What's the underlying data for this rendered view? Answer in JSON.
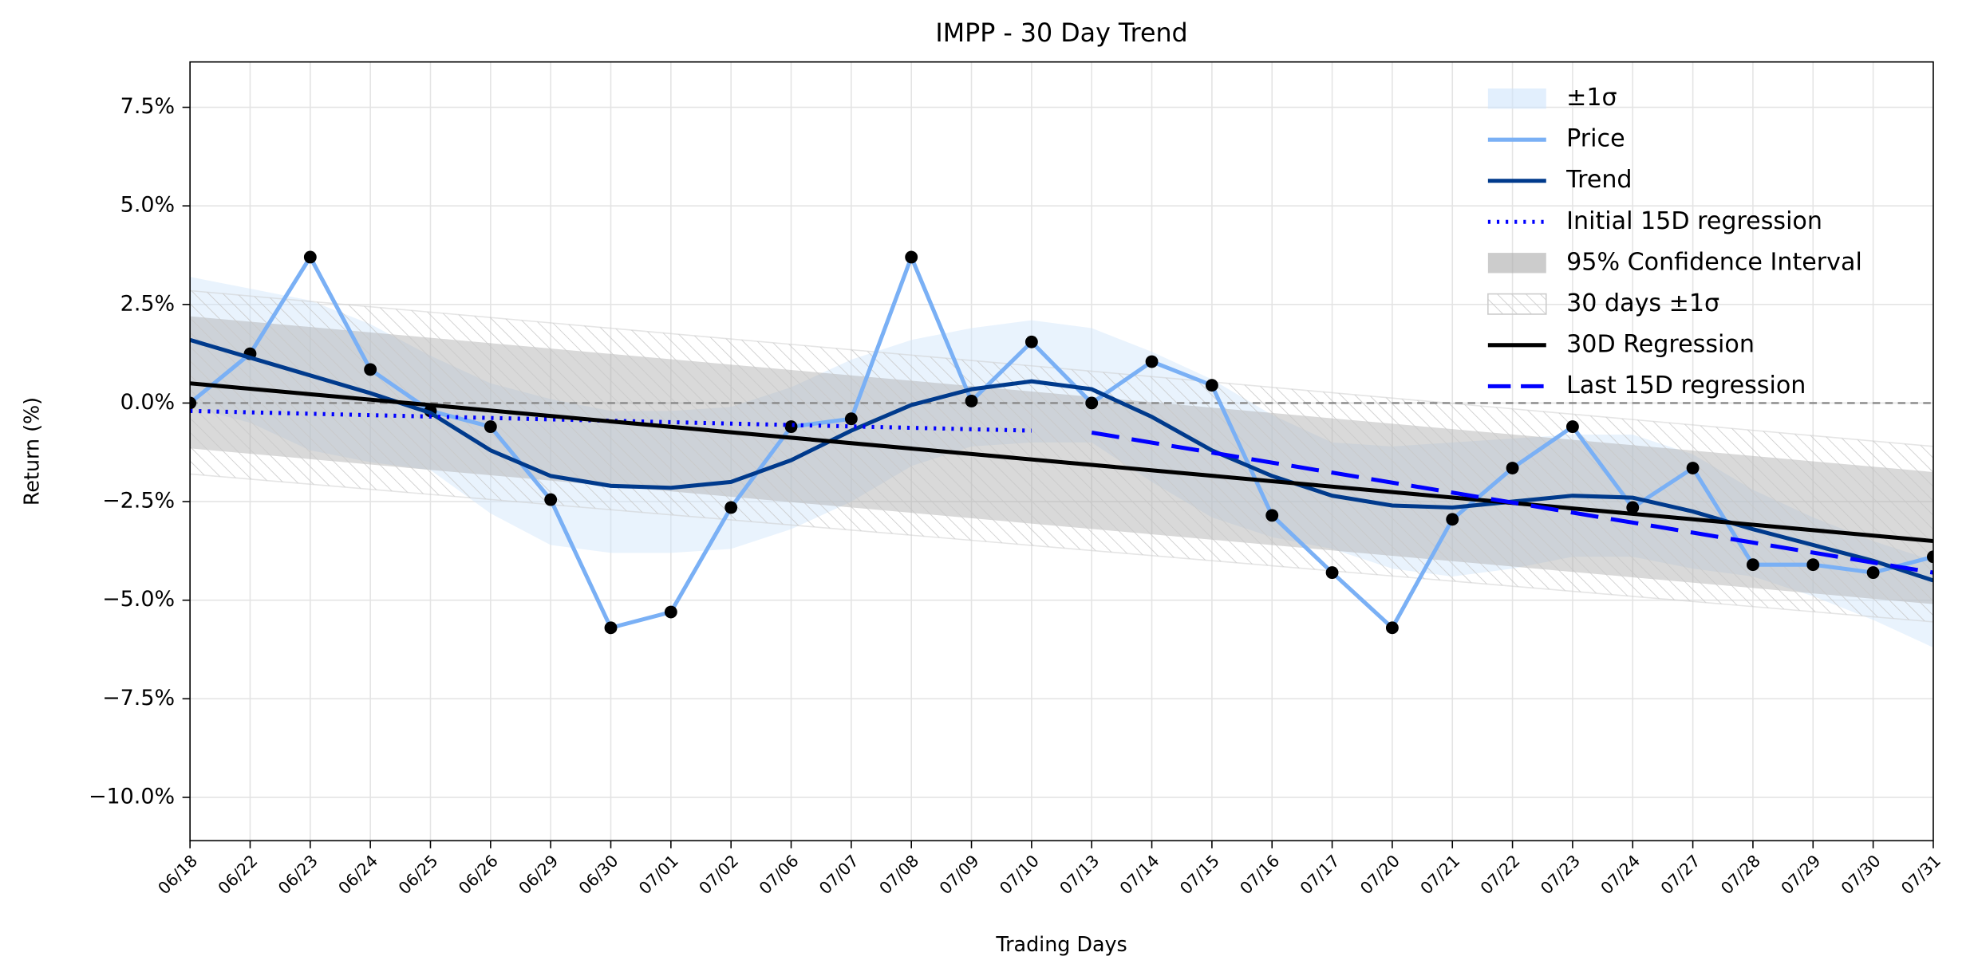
{
  "chart_data": {
    "type": "line",
    "title": "IMPP - 30 Day Trend",
    "xlabel": "Trading Days",
    "ylabel": "Return (%)",
    "categories": [
      "06/18",
      "06/22",
      "06/23",
      "06/24",
      "06/25",
      "06/26",
      "06/29",
      "06/30",
      "07/01",
      "07/02",
      "07/06",
      "07/07",
      "07/08",
      "07/09",
      "07/10",
      "07/13",
      "07/14",
      "07/15",
      "07/16",
      "07/17",
      "07/20",
      "07/21",
      "07/22",
      "07/23",
      "07/24",
      "07/27",
      "07/28",
      "07/29",
      "07/30",
      "07/31"
    ],
    "ylim": [
      -11.1,
      8.65
    ],
    "yticks": [
      {
        "value": -10,
        "label": "−10.0%"
      },
      {
        "value": -7.5,
        "label": "−7.5%"
      },
      {
        "value": -5,
        "label": "−5.0%"
      },
      {
        "value": -2.5,
        "label": "−2.5%"
      },
      {
        "value": 0,
        "label": "0.0%"
      },
      {
        "value": 2.5,
        "label": "2.5%"
      },
      {
        "value": 5,
        "label": "5.0%"
      },
      {
        "value": 7.5,
        "label": "7.5%"
      }
    ],
    "grid": true,
    "legend": "upper right",
    "hline": 0,
    "series": [
      {
        "name": "±1σ",
        "kind": "band",
        "color": "#cfe5fb",
        "upper": [
          3.2,
          2.9,
          2.6,
          2.0,
          1.2,
          0.5,
          0.1,
          -0.2,
          -0.2,
          -0.1,
          0.4,
          1.1,
          1.6,
          1.9,
          2.1,
          1.9,
          1.3,
          0.6,
          -0.3,
          -1.0,
          -1.1,
          -1.0,
          -0.9,
          -0.8,
          -0.8,
          -1.3,
          -2.2,
          -2.9,
          -3.5,
          -4.0
        ],
        "lower": [
          -0.1,
          -0.5,
          -1.2,
          -1.5,
          -1.7,
          -2.8,
          -3.6,
          -3.8,
          -3.8,
          -3.7,
          -3.2,
          -2.5,
          -1.6,
          -1.1,
          -1.0,
          -1.0,
          -2.0,
          -2.9,
          -3.4,
          -3.7,
          -4.2,
          -4.4,
          -4.2,
          -3.9,
          -3.9,
          -4.2,
          -4.4,
          -4.9,
          -5.5,
          -6.2
        ]
      },
      {
        "name": "Price",
        "kind": "line",
        "color": "#7ab0f5",
        "markers": true,
        "values": [
          0.0,
          1.25,
          3.7,
          0.85,
          -0.2,
          -0.6,
          -2.45,
          -5.7,
          -5.3,
          -2.65,
          -0.6,
          -0.4,
          3.7,
          0.05,
          1.55,
          0.0,
          1.05,
          0.45,
          -2.85,
          -4.3,
          -5.7,
          -2.95,
          -1.65,
          -0.6,
          -2.65,
          -1.65,
          -4.1,
          -4.1,
          -4.3,
          -3.9
        ]
      },
      {
        "name": "Trend",
        "kind": "line",
        "color": "#003a8c",
        "values": [
          1.6,
          1.15,
          0.7,
          0.25,
          -0.25,
          -1.2,
          -1.85,
          -2.1,
          -2.15,
          -2.0,
          -1.45,
          -0.7,
          -0.05,
          0.35,
          0.55,
          0.35,
          -0.35,
          -1.2,
          -1.85,
          -2.35,
          -2.6,
          -2.65,
          -2.5,
          -2.35,
          -2.4,
          -2.75,
          -3.2,
          -3.6,
          -4.0,
          -4.5
        ]
      },
      {
        "name": "Initial 15D regression",
        "kind": "line",
        "color": "#0000ff",
        "style": "dotted",
        "x": [
          "06/18",
          "07/10"
        ],
        "values": [
          -0.2,
          -0.7
        ]
      },
      {
        "name": "95% Confidence Interval",
        "kind": "band",
        "color": "#aaaaaa",
        "x": [
          "06/18",
          "07/31"
        ],
        "upper": [
          2.2,
          -1.75
        ],
        "lower": [
          -1.15,
          -5.1
        ]
      },
      {
        "name": "30 days ±1σ",
        "kind": "band",
        "color": "#cccccc",
        "hatch": true,
        "x": [
          "06/18",
          "07/31"
        ],
        "upper": [
          2.85,
          -1.1
        ],
        "lower": [
          -1.8,
          -5.55
        ]
      },
      {
        "name": "30D Regression",
        "kind": "line",
        "color": "#000000",
        "x": [
          "06/18",
          "07/31"
        ],
        "values": [
          0.5,
          -3.5
        ]
      },
      {
        "name": "Last 15D regression",
        "kind": "line",
        "color": "#0000ff",
        "style": "dashed",
        "x": [
          "07/13",
          "07/31"
        ],
        "values": [
          -0.75,
          -4.3
        ]
      }
    ]
  }
}
